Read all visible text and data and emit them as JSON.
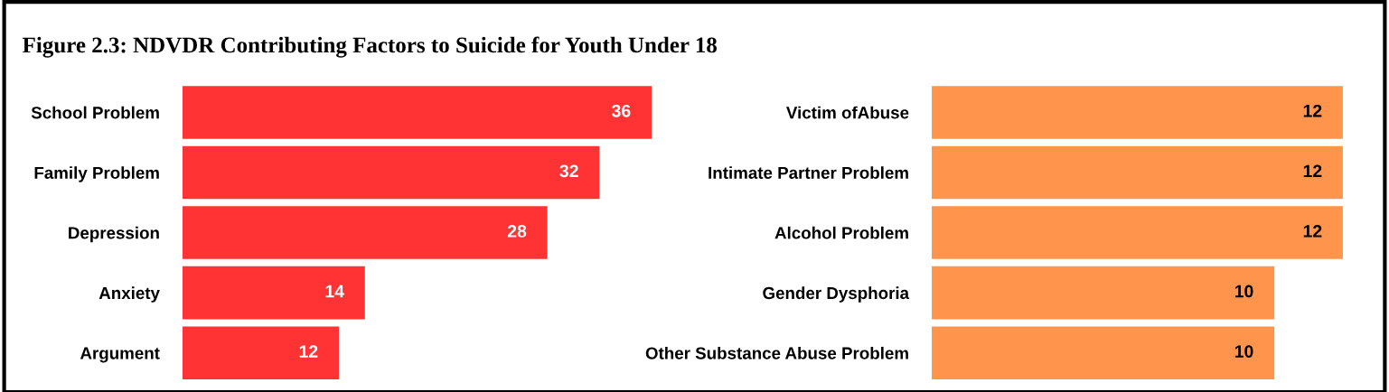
{
  "chart_data": [
    {
      "type": "bar",
      "orientation": "horizontal",
      "title": "Figure 2.3: NDVDR Contributing Factors to Suicide for Youth Under 18",
      "categories": [
        "School Problem",
        "Family Problem",
        "Depression",
        "Anxiety",
        "Argument"
      ],
      "values": [
        36,
        32,
        28,
        14,
        12
      ],
      "color": "#ff3333",
      "data_labels": true,
      "grid": false,
      "legend": false,
      "tick_labels": "y"
    },
    {
      "type": "bar",
      "orientation": "horizontal",
      "categories": [
        "Victim ofAbuse",
        "Intimate Partner Problem",
        "Alcohol Problem",
        "Gender Dysphoria",
        "Other Substance Abuse Problem"
      ],
      "values": [
        12,
        12,
        12,
        10,
        10
      ],
      "color": "#ff944d",
      "data_labels": true,
      "grid": false,
      "legend": false,
      "tick_labels": "y"
    }
  ]
}
